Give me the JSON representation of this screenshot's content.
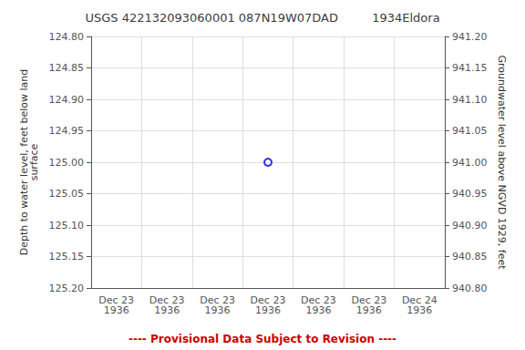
{
  "chart_data": {
    "type": "scatter",
    "title": "USGS 422132093060001 087N19W07DAD         1934Eldora",
    "ylabel": "Depth to water level, feet below land\nsurface",
    "y2label": "Groundwater level above NGVD 1929, feet",
    "categories": [
      "Dec 23\n1936",
      "Dec 23\n1936",
      "Dec 23\n1936",
      "Dec 23\n1936",
      "Dec 23\n1936",
      "Dec 23\n1936",
      "Dec 24\n1936"
    ],
    "values": [
      null,
      null,
      null,
      125.0,
      null,
      null,
      null
    ],
    "color": "#0000cc",
    "marker": "circle",
    "ylim": [
      125.2,
      124.8
    ],
    "yticks": [
      {
        "value": 124.8,
        "label": "124.80"
      },
      {
        "value": 124.85,
        "label": "124.85"
      },
      {
        "value": 124.9,
        "label": "124.90"
      },
      {
        "value": 124.95,
        "label": "124.95"
      },
      {
        "value": 125.0,
        "label": "125.00"
      },
      {
        "value": 125.05,
        "label": "125.05"
      },
      {
        "value": 125.1,
        "label": "125.10"
      },
      {
        "value": 125.15,
        "label": "125.15"
      },
      {
        "value": 125.2,
        "label": "125.20"
      }
    ],
    "y2lim": [
      940.8,
      941.2
    ],
    "y2ticks": [
      {
        "value": 941.2,
        "label": "941.20"
      },
      {
        "value": 941.15,
        "label": "941.15"
      },
      {
        "value": 941.1,
        "label": "941.10"
      },
      {
        "value": 941.05,
        "label": "941.05"
      },
      {
        "value": 941.0,
        "label": "941.00"
      },
      {
        "value": 940.95,
        "label": "940.95"
      },
      {
        "value": 940.9,
        "label": "940.90"
      },
      {
        "value": 940.85,
        "label": "940.85"
      },
      {
        "value": 940.8,
        "label": "940.80"
      }
    ],
    "grid": true,
    "annotations": [
      {
        "text": "---- Provisional Data Subject to Revision ----",
        "color": "#cc0000"
      }
    ]
  }
}
